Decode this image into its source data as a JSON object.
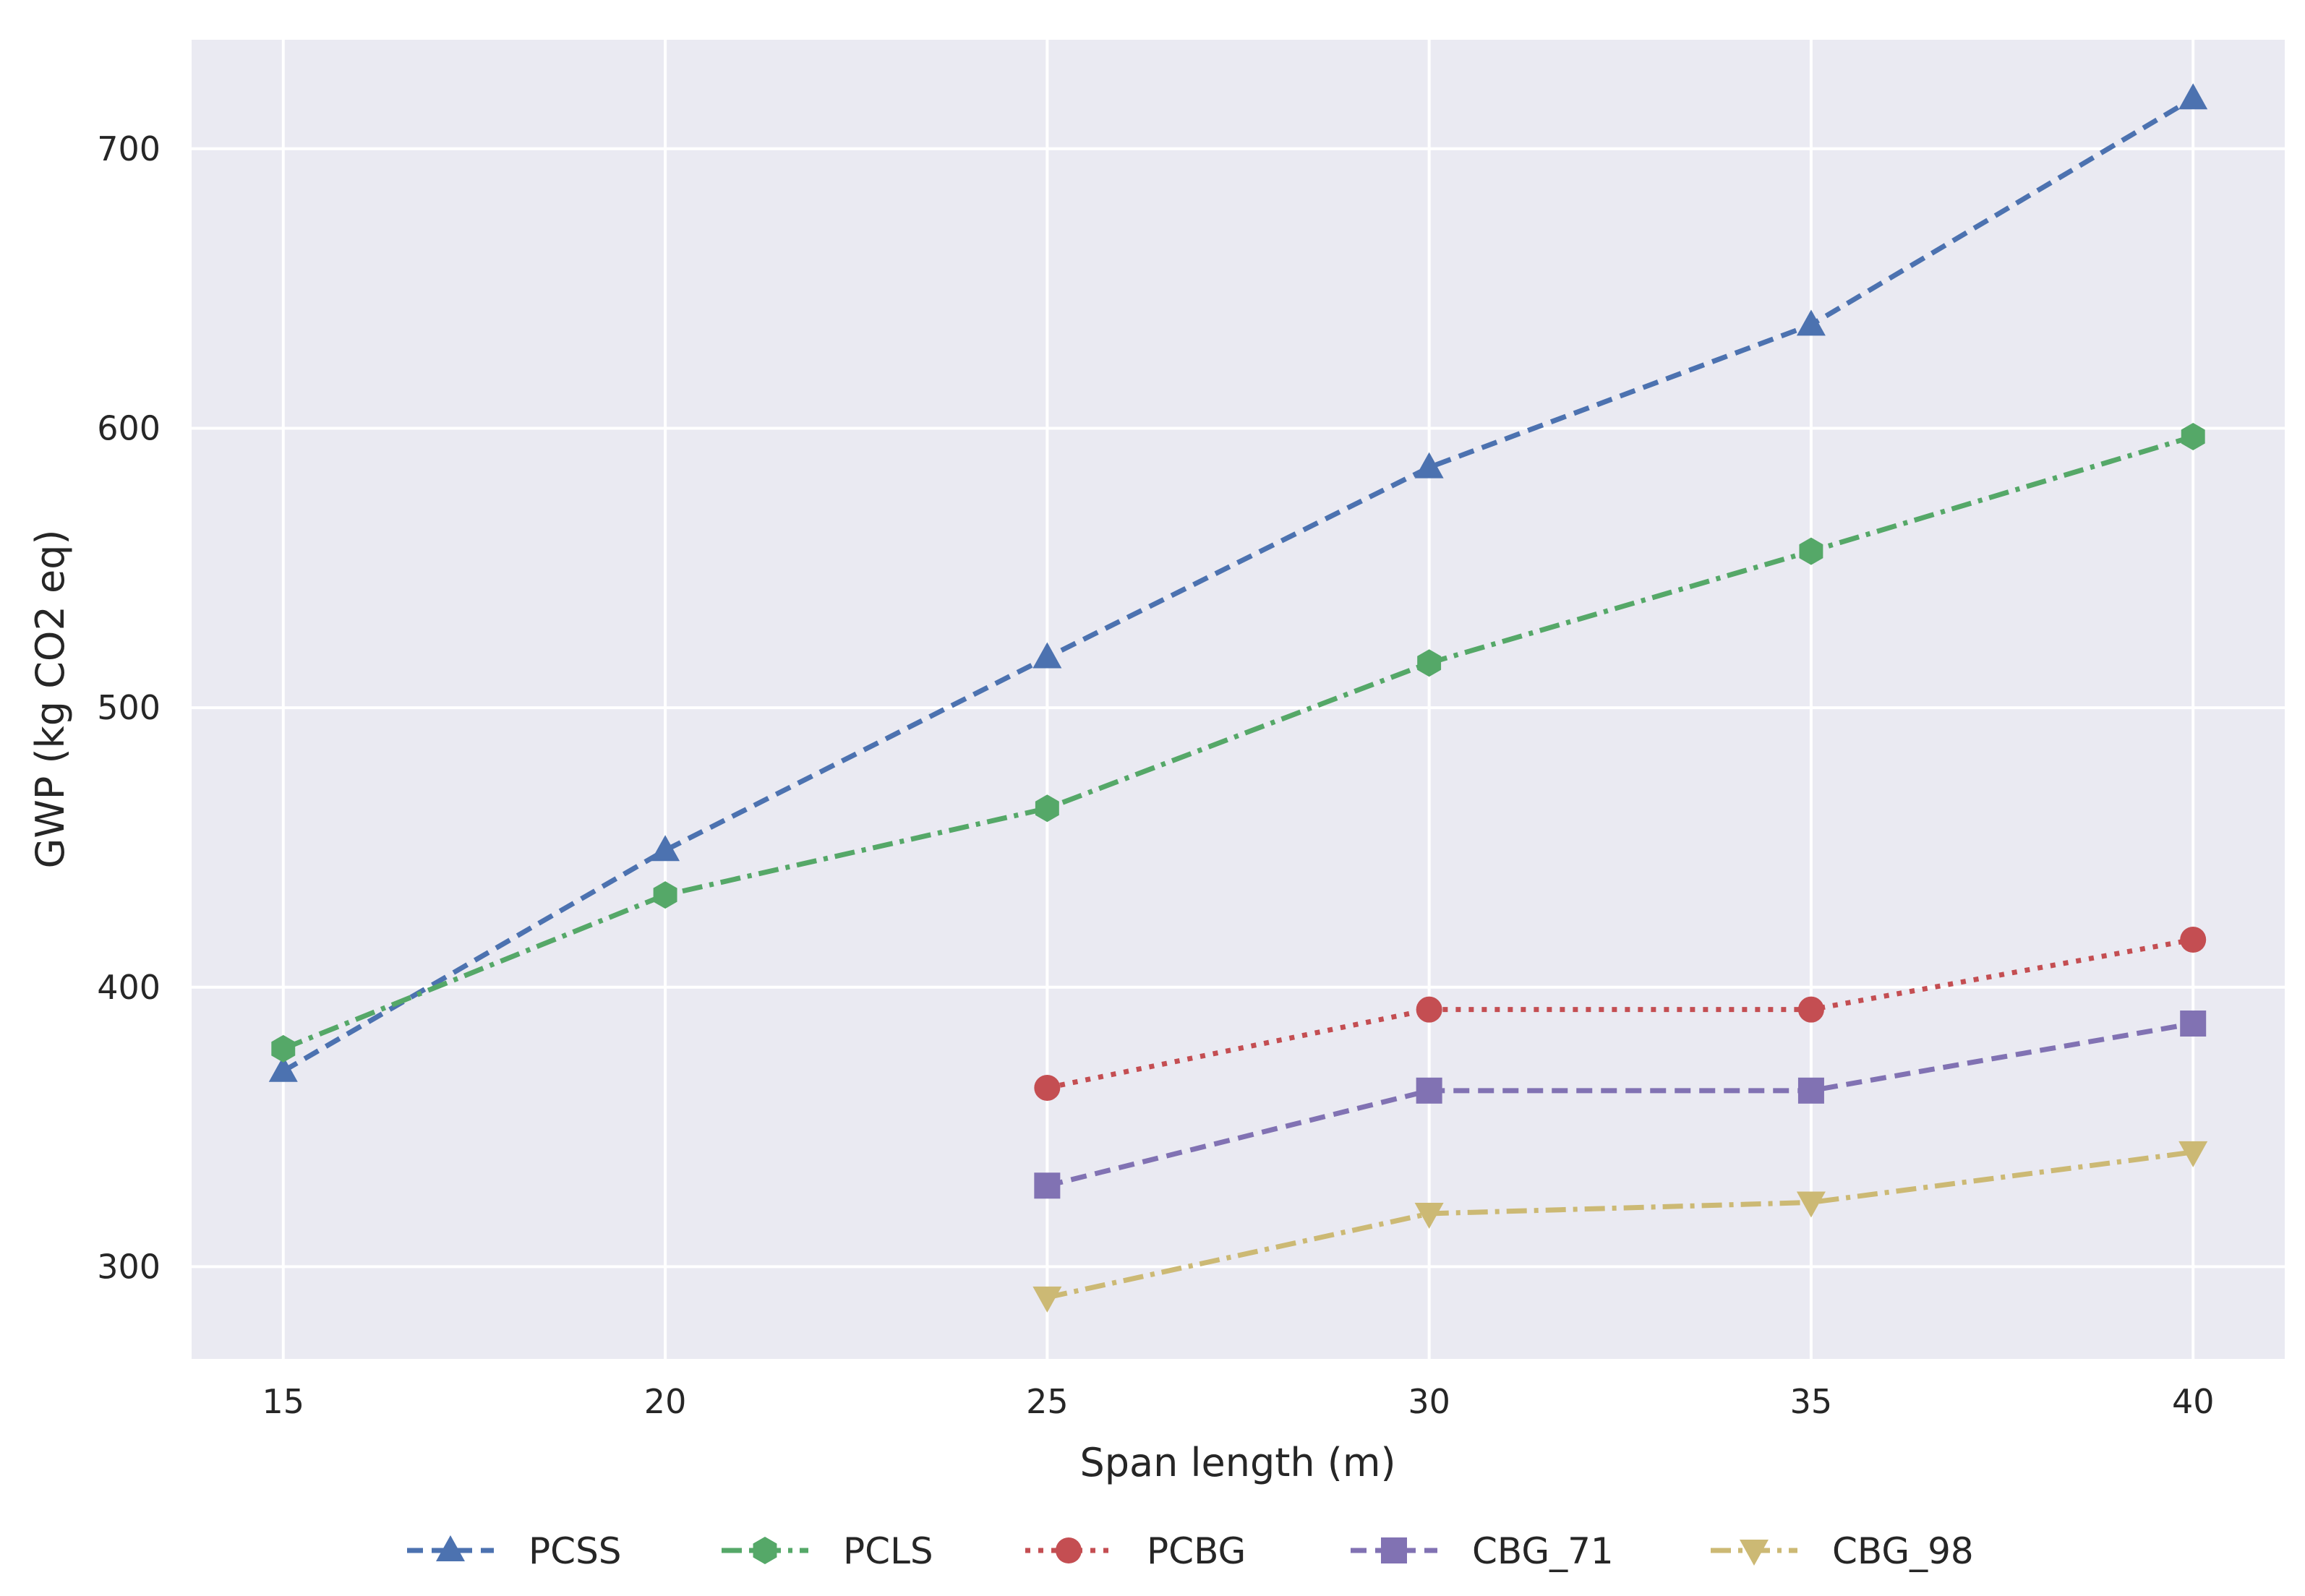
{
  "chart_data": {
    "type": "line",
    "title": "",
    "xlabel": "Span length (m)",
    "ylabel": "GWP (kg CO2 eq)",
    "x_ticks": [
      15,
      20,
      25,
      30,
      35,
      40
    ],
    "y_ticks": [
      300,
      400,
      500,
      600,
      700
    ],
    "xlim": [
      13.8,
      41.2
    ],
    "ylim": [
      267,
      739
    ],
    "grid": true,
    "legend_position": "bottom-center",
    "series": [
      {
        "name": "PCSS",
        "color": "#4c72b0",
        "marker": "triangle-up",
        "line_style": "dashed",
        "x": [
          15,
          20,
          25,
          30,
          35,
          40
        ],
        "values": [
          370,
          449,
          518,
          586,
          637,
          718
        ]
      },
      {
        "name": "PCLS",
        "color": "#55a868",
        "marker": "hexagon",
        "line_style": "dashdot",
        "x": [
          15,
          20,
          25,
          30,
          35,
          40
        ],
        "values": [
          378,
          433,
          464,
          516,
          556,
          597
        ]
      },
      {
        "name": "PCBG",
        "color": "#c44e52",
        "marker": "circle",
        "line_style": "dotted",
        "x": [
          25,
          30,
          35,
          40
        ],
        "values": [
          364,
          392,
          392,
          417
        ]
      },
      {
        "name": "CBG_71",
        "color": "#8172b3",
        "marker": "square",
        "line_style": "dashed",
        "x": [
          25,
          30,
          35,
          40
        ],
        "values": [
          329,
          363,
          363,
          387
        ]
      },
      {
        "name": "CBG_98",
        "color": "#ccb974",
        "marker": "triangle-down",
        "line_style": "dashdot",
        "x": [
          25,
          30,
          35,
          40
        ],
        "values": [
          289,
          319,
          323,
          341
        ]
      }
    ]
  }
}
